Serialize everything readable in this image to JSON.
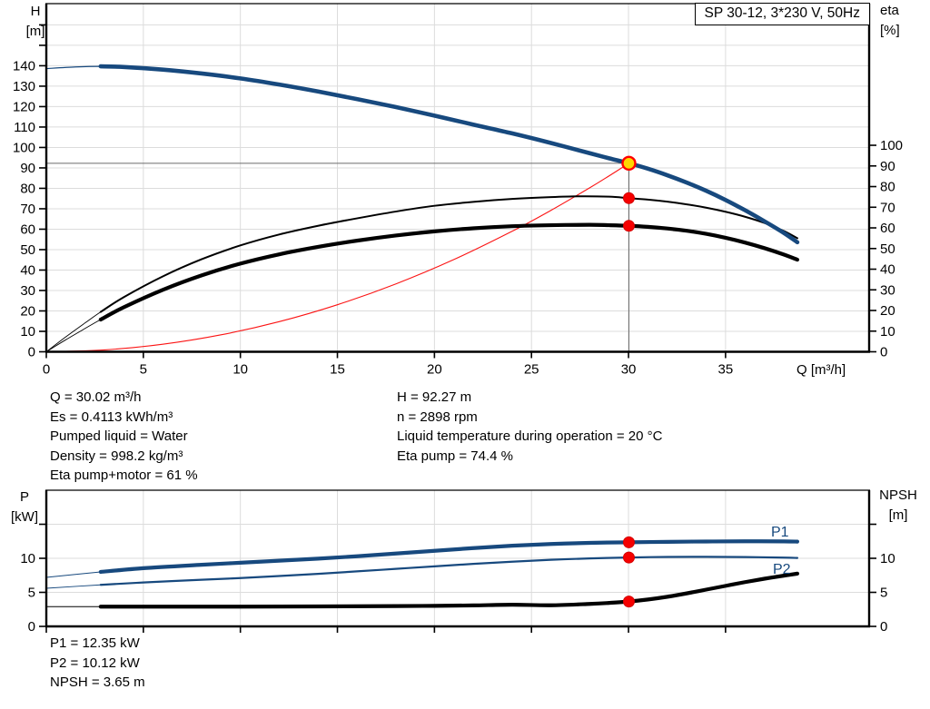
{
  "colors": {
    "curve_blue": "#17497e",
    "curve_black": "#000000",
    "curve_red": "#fb1414",
    "marker_red": "#f60000",
    "marker_red_edge": "#d40000",
    "marker_yellow": "#ffd800",
    "grid": "#dcdcdc",
    "crosshair": "#6b6b6b",
    "axis": "#000000"
  },
  "chart_data": [
    {
      "type": "line",
      "title": "SP 30-12, 3*230 V, 50Hz",
      "x_axis": {
        "label": "Q [m³/h]",
        "range": [
          0,
          42.4
        ],
        "ticks": [
          0,
          5,
          10,
          15,
          20,
          25,
          30,
          35
        ]
      },
      "y_left": {
        "title": [
          "H",
          "[m]"
        ],
        "range": [
          0,
          170.4
        ],
        "ticks_labeled": [
          0,
          10,
          20,
          30,
          40,
          50,
          60,
          70,
          80,
          90,
          100,
          110,
          120,
          130,
          140
        ],
        "ticks_unlabeled": [
          150,
          160
        ]
      },
      "y_right": {
        "title": [
          "eta",
          "[%]"
        ],
        "range": [
          0,
          168.6
        ],
        "ticks_labeled": [
          0,
          10,
          20,
          30,
          40,
          50,
          60,
          70,
          80,
          90,
          100
        ],
        "ticks_unlabeled": []
      },
      "operating_point": {
        "q": 30.02,
        "h": 92.27
      },
      "series": [
        {
          "name": "system-curve",
          "axis": "left",
          "color": "#fb1414",
          "width": 1.1,
          "points": [
            [
              0,
              0
            ],
            [
              3,
              0.92
            ],
            [
              6,
              3.69
            ],
            [
              9,
              8.29
            ],
            [
              12,
              14.74
            ],
            [
              15,
              23.03
            ],
            [
              18,
              33.17
            ],
            [
              21,
              45.14
            ],
            [
              24,
              58.97
            ],
            [
              26,
              69.2
            ],
            [
              28,
              80.25
            ],
            [
              29,
              86.1
            ],
            [
              30.02,
              92.27
            ]
          ]
        },
        {
          "name": "eta-pump-curve",
          "axis": "right",
          "color": "#000000",
          "width": 2,
          "thin_width": 0.9,
          "thick_from": 2.8,
          "points": [
            [
              0,
              0
            ],
            [
              1,
              7.2
            ],
            [
              2,
              14
            ],
            [
              2.8,
              19.3
            ],
            [
              4,
              26.5
            ],
            [
              6,
              36.5
            ],
            [
              8,
              44.8
            ],
            [
              10,
              51.5
            ],
            [
              12,
              56.8
            ],
            [
              14,
              61
            ],
            [
              16,
              64.6
            ],
            [
              18,
              67.9
            ],
            [
              20,
              70.7
            ],
            [
              22,
              72.6
            ],
            [
              24,
              74
            ],
            [
              26,
              74.9
            ],
            [
              27.5,
              75.3
            ],
            [
              29,
              75.1
            ],
            [
              30.02,
              74.4
            ],
            [
              31,
              73.7
            ],
            [
              32,
              72.7
            ],
            [
              33,
              71.4
            ],
            [
              34,
              69.8
            ],
            [
              35,
              67.8
            ],
            [
              36,
              65.4
            ],
            [
              37,
              62.4
            ],
            [
              38,
              58.5
            ],
            [
              38.7,
              55
            ]
          ]
        },
        {
          "name": "eta-pump-motor-curve",
          "axis": "right",
          "color": "#000000",
          "width": 4.2,
          "thin_width": 0.9,
          "thick_from": 2.8,
          "points": [
            [
              0,
              0
            ],
            [
              1,
              5.8
            ],
            [
              2,
              11.3
            ],
            [
              2.8,
              15.6
            ],
            [
              4,
              21.6
            ],
            [
              6,
              30
            ],
            [
              8,
              37
            ],
            [
              10,
              42.7
            ],
            [
              12,
              47.2
            ],
            [
              14,
              50.8
            ],
            [
              16,
              53.8
            ],
            [
              18,
              56.3
            ],
            [
              20,
              58.3
            ],
            [
              22,
              59.8
            ],
            [
              24,
              60.8
            ],
            [
              26,
              61.3
            ],
            [
              28,
              61.5
            ],
            [
              29,
              61.3
            ],
            [
              30.02,
              61
            ],
            [
              31,
              60.5
            ],
            [
              32,
              59.7
            ],
            [
              33,
              58.6
            ],
            [
              34,
              57.1
            ],
            [
              35,
              55.2
            ],
            [
              36,
              52.9
            ],
            [
              37,
              50.2
            ],
            [
              38,
              47.1
            ],
            [
              38.7,
              44.6
            ]
          ]
        },
        {
          "name": "head-curve",
          "axis": "left",
          "color": "#17497e",
          "width": 4.6,
          "thin_width": 1.2,
          "thick_from": 2.8,
          "points": [
            [
              0,
              138.6
            ],
            [
              1.5,
              139.4
            ],
            [
              2.8,
              139.7
            ],
            [
              4,
              139.4
            ],
            [
              6,
              138.1
            ],
            [
              8,
              136.2
            ],
            [
              10,
              133.8
            ],
            [
              12,
              130.8
            ],
            [
              14,
              127.4
            ],
            [
              16,
              123.7
            ],
            [
              18,
              119.8
            ],
            [
              20,
              115.6
            ],
            [
              22,
              111.2
            ],
            [
              24,
              106.9
            ],
            [
              26,
              102.2
            ],
            [
              28,
              97.2
            ],
            [
              29,
              94.7
            ],
            [
              30.02,
              92.27
            ],
            [
              31,
              89.6
            ],
            [
              32,
              86.4
            ],
            [
              33,
              82.8
            ],
            [
              34,
              78.8
            ],
            [
              35,
              74.3
            ],
            [
              36,
              69.3
            ],
            [
              37,
              63.9
            ],
            [
              38,
              58.2
            ],
            [
              38.7,
              53.6
            ]
          ]
        }
      ],
      "markers": [
        {
          "q": 30.02,
          "value": 92.27,
          "axis": "left",
          "style": "duty"
        },
        {
          "q": 30.02,
          "value": 74.4,
          "axis": "right",
          "style": "dot"
        },
        {
          "q": 30.02,
          "value": 61,
          "axis": "right",
          "style": "dot"
        }
      ]
    },
    {
      "type": "line",
      "title": "",
      "x_axis": {
        "label": "",
        "range": [
          0,
          42.4
        ],
        "ticks": [
          0,
          5,
          10,
          15,
          20,
          25,
          30,
          35
        ]
      },
      "y_left": {
        "title": [
          "P",
          "[kW]"
        ],
        "range": [
          0,
          20
        ],
        "ticks_labeled": [
          0,
          5,
          10
        ],
        "ticks_unlabeled": [
          15
        ]
      },
      "y_right": {
        "title": [
          "NPSH",
          "[m]"
        ],
        "range": [
          0,
          20
        ],
        "ticks_labeled": [
          0,
          5,
          10
        ],
        "ticks_unlabeled": [
          15
        ]
      },
      "series": [
        {
          "name": "p1-curve",
          "axis": "left",
          "color": "#17497e",
          "width": 4.2,
          "thin_width": 1,
          "thick_from": 2.8,
          "points": [
            [
              0,
              7.2
            ],
            [
              2.8,
              8.0
            ],
            [
              5,
              8.55
            ],
            [
              8,
              9.05
            ],
            [
              10,
              9.35
            ],
            [
              12,
              9.65
            ],
            [
              14,
              9.95
            ],
            [
              16,
              10.3
            ],
            [
              18,
              10.7
            ],
            [
              20,
              11.1
            ],
            [
              22,
              11.5
            ],
            [
              24,
              11.85
            ],
            [
              26,
              12.1
            ],
            [
              28,
              12.27
            ],
            [
              30.02,
              12.35
            ],
            [
              32,
              12.42
            ],
            [
              34,
              12.47
            ],
            [
              36,
              12.5
            ],
            [
              38,
              12.48
            ],
            [
              38.7,
              12.45
            ]
          ]
        },
        {
          "name": "p2-curve",
          "axis": "left",
          "color": "#17497e",
          "width": 2.2,
          "thin_width": 0.9,
          "thick_from": 2.8,
          "points": [
            [
              0,
              5.6
            ],
            [
              2.8,
              6.1
            ],
            [
              5,
              6.45
            ],
            [
              8,
              6.85
            ],
            [
              10,
              7.1
            ],
            [
              12,
              7.4
            ],
            [
              14,
              7.72
            ],
            [
              16,
              8.08
            ],
            [
              18,
              8.45
            ],
            [
              20,
              8.82
            ],
            [
              22,
              9.18
            ],
            [
              24,
              9.5
            ],
            [
              26,
              9.78
            ],
            [
              28,
              9.98
            ],
            [
              30.02,
              10.12
            ],
            [
              32,
              10.2
            ],
            [
              34,
              10.22
            ],
            [
              36,
              10.18
            ],
            [
              38,
              10.1
            ],
            [
              38.7,
              10.05
            ]
          ]
        },
        {
          "name": "npsh-curve",
          "axis": "right",
          "color": "#000000",
          "width": 4.2,
          "thin_width": 0.9,
          "thick_from": 2.8,
          "points": [
            [
              0,
              2.9
            ],
            [
              2.8,
              2.9
            ],
            [
              6,
              2.9
            ],
            [
              10,
              2.9
            ],
            [
              14,
              2.93
            ],
            [
              18,
              2.98
            ],
            [
              20,
              3.02
            ],
            [
              22,
              3.08
            ],
            [
              24,
              3.18
            ],
            [
              26,
              3.1
            ],
            [
              28,
              3.3
            ],
            [
              29,
              3.45
            ],
            [
              30.02,
              3.65
            ],
            [
              31,
              3.95
            ],
            [
              32,
              4.35
            ],
            [
              33,
              4.85
            ],
            [
              34,
              5.4
            ],
            [
              35,
              5.95
            ],
            [
              36,
              6.5
            ],
            [
              37,
              7.0
            ],
            [
              38,
              7.45
            ],
            [
              38.7,
              7.75
            ]
          ]
        }
      ],
      "curve_labels": [
        {
          "text": "P1"
        },
        {
          "text": "P2"
        }
      ],
      "markers": [
        {
          "q": 30.02,
          "value": 12.35,
          "axis": "left",
          "style": "dot"
        },
        {
          "q": 30.02,
          "value": 10.12,
          "axis": "left",
          "style": "dot"
        },
        {
          "q": 30.02,
          "value": 3.65,
          "axis": "right",
          "style": "dot"
        }
      ]
    }
  ],
  "info_blocks": {
    "left": [
      "Q = 30.02 m³/h",
      "Es = 0.4113 kWh/m³",
      "Pumped liquid = Water",
      "Density = 998.2 kg/m³",
      "Eta pump+motor = 61 %"
    ],
    "right": [
      "H = 92.27 m",
      "n = 2898 rpm",
      "Liquid temperature during operation = 20 °C",
      "Eta pump = 74.4 %"
    ],
    "bottom": [
      "P1 = 12.35 kW",
      "P2 = 10.12 kW",
      "NPSH = 3.65 m"
    ]
  }
}
